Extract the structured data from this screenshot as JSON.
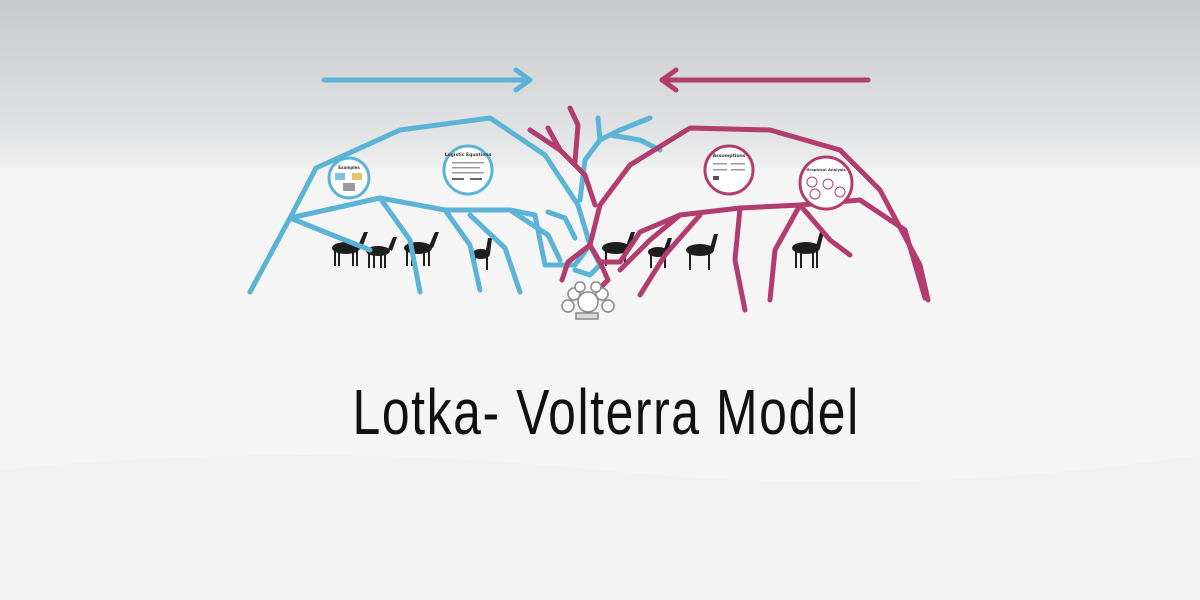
{
  "colors": {
    "prey": "#5bb4d6",
    "predator": "#b23c6e",
    "sky_top": "#c9cacc",
    "snow": "#f7f7f7",
    "deer": "#1e1e1e"
  },
  "title": "Lotka- Volterra Model",
  "frames": {
    "examples": "Examples",
    "logistic": "Logistic Equations",
    "assumptions": "Assumptions",
    "graphs": "Graphical Analysis"
  }
}
